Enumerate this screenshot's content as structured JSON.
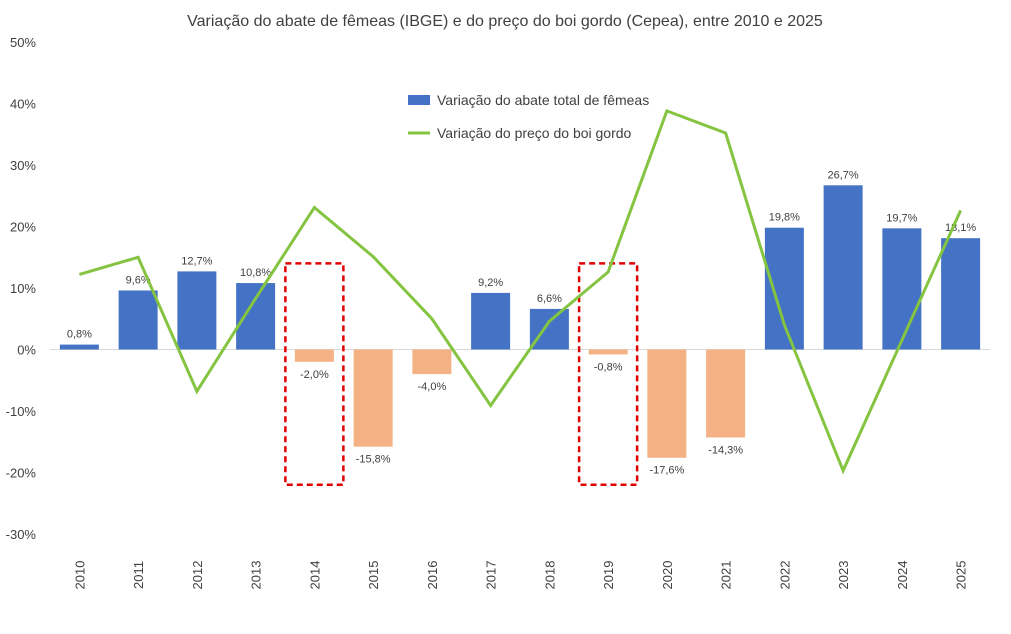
{
  "chart_data": {
    "type": "bar+line",
    "title": "Variação do abate de fêmeas (IBGE) e do preço do boi gordo (Cepea), entre 2010 e 2025",
    "categories": [
      "2010",
      "2011",
      "2012",
      "2013",
      "2014",
      "2015",
      "2016",
      "2017",
      "2018",
      "2019",
      "2020",
      "2021",
      "2022",
      "2023",
      "2024",
      "2025"
    ],
    "series": [
      {
        "name": "Variação do abate total de fêmeas",
        "type": "bar",
        "values": [
          0.8,
          9.6,
          12.7,
          10.8,
          -2.0,
          -15.8,
          -4.0,
          9.2,
          6.6,
          -0.8,
          -17.6,
          -14.3,
          19.8,
          26.7,
          19.7,
          18.1
        ],
        "labels": [
          "0,8%",
          "9,6%",
          "12,7%",
          "10,8%",
          "-2,0%",
          "-15,8%",
          "-4,0%",
          "9,2%",
          "6,6%",
          "-0,8%",
          "-17,6%",
          "-14,3%",
          "19,8%",
          "26,7%",
          "19,7%",
          "18,1%"
        ],
        "color_positive": "#4472C4",
        "color_negative": "#F4B183"
      },
      {
        "name": "Variação do preço do boi gordo",
        "type": "line",
        "values": [
          12.2,
          15.0,
          -6.8,
          8.3,
          23.1,
          15.1,
          5.0,
          -9.1,
          4.6,
          12.6,
          38.8,
          35.2,
          4.0,
          -19.7,
          1.5,
          22.6
        ],
        "color": "#84C441"
      }
    ],
    "ylim": [
      -30,
      50
    ],
    "yticks": [
      -30,
      -20,
      -10,
      0,
      10,
      20,
      30,
      40,
      50
    ],
    "ytick_labels": [
      "-30%",
      "-20%",
      "-10%",
      "0%",
      "10%",
      "20%",
      "30%",
      "40%",
      "50%"
    ],
    "legend_position": "top-center",
    "highlights": [
      {
        "category": "2014",
        "range": [
          -22,
          14
        ],
        "color": "#E00000"
      },
      {
        "category": "2019",
        "range": [
          -22,
          14
        ],
        "color": "#E00000"
      }
    ]
  }
}
